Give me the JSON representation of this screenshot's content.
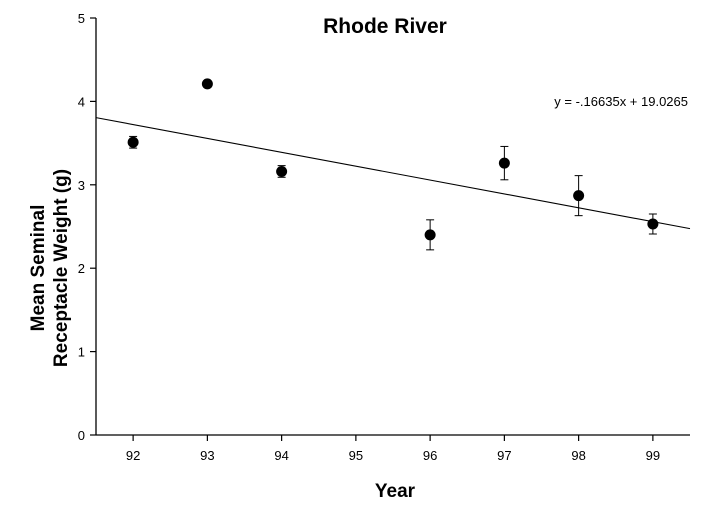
{
  "chart_data": {
    "type": "scatter",
    "title": "Rhode River",
    "xlabel": "Year",
    "ylabel_lines": [
      "Mean Seminal",
      "Receptacle Weight (g)"
    ],
    "xlim": [
      91.5,
      99.5
    ],
    "ylim": [
      0,
      5
    ],
    "x_ticks": [
      92,
      93,
      94,
      95,
      96,
      97,
      98,
      99
    ],
    "x_tick_labels": [
      "92",
      "93",
      "94",
      "95",
      "96",
      "97",
      "98",
      "99"
    ],
    "y_ticks": [
      0,
      1,
      2,
      3,
      4,
      5
    ],
    "y_tick_labels": [
      "0",
      "1",
      "2",
      "3",
      "4",
      "5"
    ],
    "points": [
      {
        "x": 92,
        "y": 3.51,
        "err": 0.07
      },
      {
        "x": 93,
        "y": 4.21,
        "err": 0.04
      },
      {
        "x": 94,
        "y": 3.16,
        "err": 0.07
      },
      {
        "x": 96,
        "y": 2.4,
        "err": 0.18
      },
      {
        "x": 97,
        "y": 3.26,
        "err": 0.2
      },
      {
        "x": 98,
        "y": 2.87,
        "err": 0.24
      },
      {
        "x": 99,
        "y": 2.53,
        "err": 0.12
      }
    ],
    "trendline": {
      "slope": -0.16635,
      "intercept": 19.0265
    },
    "equation": "y = -.16635x + 19.0265",
    "grid": false,
    "marker_color": "#000000"
  }
}
